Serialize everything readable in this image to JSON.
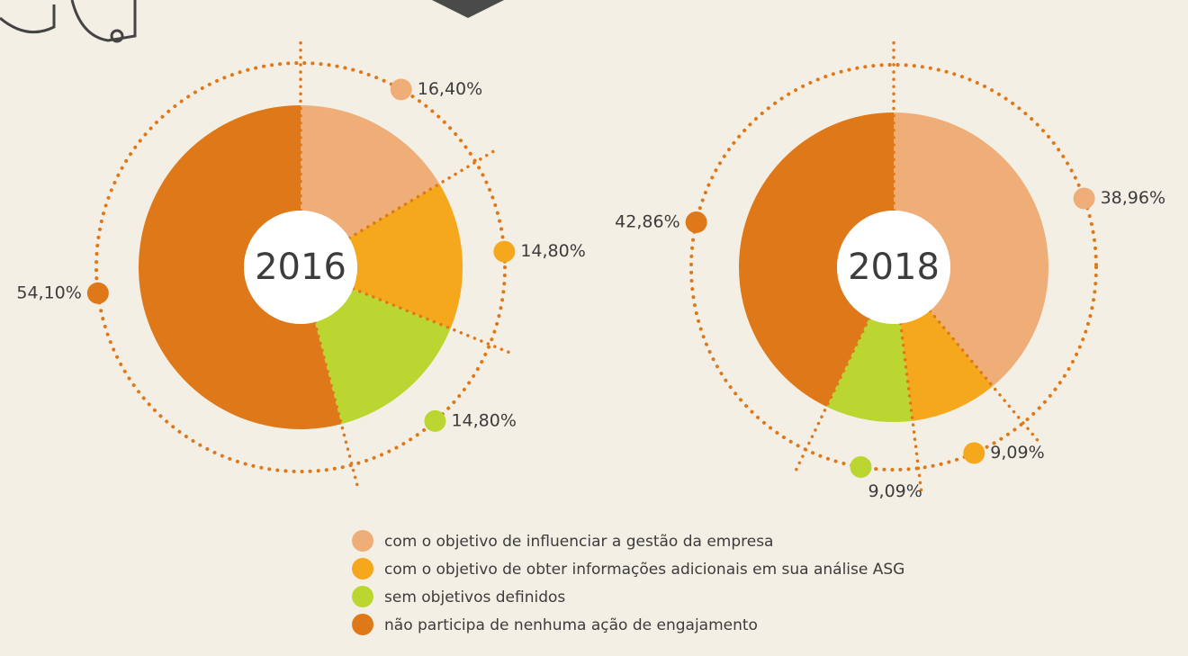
{
  "chart_data": [
    {
      "type": "pie",
      "title": "2016",
      "categories": [
        "com o objetivo de influenciar a gestão da empresa",
        "com o objetivo de obter informações adicionais em sua análise ASG",
        "sem objetivos definidos",
        "não participa de nenhuma ação de engajamento"
      ],
      "values": [
        16.4,
        14.8,
        14.8,
        54.1
      ],
      "value_labels": [
        "16,40%",
        "14,80%",
        "14,80%",
        "54,10%"
      ],
      "colors": [
        "#efae78",
        "#f6a81c",
        "#bcd631",
        "#df7818"
      ]
    },
    {
      "type": "pie",
      "title": "2018",
      "values": [
        38.96,
        9.09,
        9.09,
        42.86
      ],
      "value_labels": [
        "38,96%",
        "9,09%",
        "9,09%",
        "42,86%"
      ],
      "colors": [
        "#efae78",
        "#f6a81c",
        "#bcd631",
        "#df7818"
      ]
    }
  ]
}
